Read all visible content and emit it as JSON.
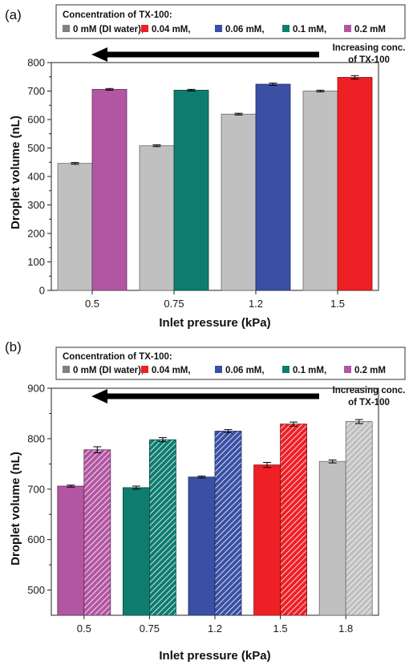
{
  "colors": {
    "gray": "#c0c0c0",
    "red": "#ee2026",
    "blue": "#3a50a4",
    "teal": "#0e7d70",
    "purple": "#b256a3"
  },
  "legend": {
    "title": "Concentration of TX-100:",
    "items": [
      {
        "label": "0 mM (DI water),",
        "color": "#808080"
      },
      {
        "label": "0.04 mM,",
        "color": "#ee2026"
      },
      {
        "label": "0.06 mM,",
        "color": "#3a50a4"
      },
      {
        "label": "0.1 mM,",
        "color": "#0e7d70"
      },
      {
        "label": "0.2 mM",
        "color": "#b256a3"
      }
    ]
  },
  "annotation": {
    "line1": "Increasing conc.",
    "line2": "of TX-100"
  },
  "chart_data": [
    {
      "type": "bar",
      "panel_label": "(a)",
      "categories": [
        "0.5",
        "0.75",
        "1.2",
        "1.5"
      ],
      "xlabel": "Inlet pressure (kPa)",
      "ylabel": "Droplet volume (nL)",
      "ylim": [
        0,
        800
      ],
      "yticks": [
        0,
        100,
        200,
        300,
        400,
        500,
        600,
        700,
        800
      ],
      "series": [
        {
          "values": [
            446,
            508,
            619,
            700
          ],
          "errors": [
            3,
            3,
            3,
            3
          ],
          "colors": [
            "#c0c0c0",
            "#c0c0c0",
            "#c0c0c0",
            "#c0c0c0"
          ],
          "hatched": false
        },
        {
          "values": [
            706,
            703,
            724,
            748
          ],
          "errors": [
            3,
            3,
            4,
            6
          ],
          "colors": [
            "#b256a3",
            "#0e7d70",
            "#3a50a4",
            "#ee2026"
          ],
          "hatched": false
        }
      ]
    },
    {
      "type": "bar",
      "panel_label": "(b)",
      "categories": [
        "0.5",
        "0.75",
        "1.2",
        "1.5",
        "1.8"
      ],
      "xlabel": "Inlet pressure (kPa)",
      "ylabel": "Droplet volume (nL)",
      "ylim": [
        450,
        900
      ],
      "yticks": [
        500,
        600,
        700,
        800,
        900
      ],
      "series": [
        {
          "values": [
            706,
            703,
            724,
            748,
            755
          ],
          "errors": [
            2,
            3,
            2,
            5,
            3
          ],
          "colors": [
            "#b256a3",
            "#0e7d70",
            "#3a50a4",
            "#ee2026",
            "#c0c0c0"
          ],
          "hatched": false
        },
        {
          "values": [
            778,
            798,
            815,
            829,
            834
          ],
          "errors": [
            6,
            4,
            3,
            4,
            4
          ],
          "colors": [
            "#b256a3",
            "#0e7d70",
            "#3a50a4",
            "#ee2026",
            "#c0c0c0"
          ],
          "hatched": true
        }
      ]
    }
  ]
}
